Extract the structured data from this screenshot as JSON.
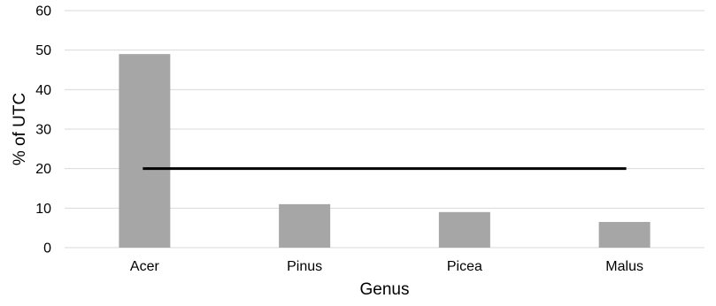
{
  "chart_data": {
    "type": "bar",
    "title": "",
    "xlabel": "Genus",
    "ylabel": "% of UTC",
    "categories": [
      "Acer",
      "Pinus",
      "Picea",
      "Malus"
    ],
    "values": [
      49,
      11,
      9,
      6.5
    ],
    "ylim": [
      0,
      60
    ],
    "yticks": [
      0,
      10,
      20,
      30,
      40,
      50,
      60
    ],
    "reference_line": {
      "value": 20
    },
    "grid": true,
    "legend": "none",
    "colors": {
      "bar": "#a6a6a6",
      "reference_line": "#000000",
      "grid": "#d9d9d9"
    }
  }
}
